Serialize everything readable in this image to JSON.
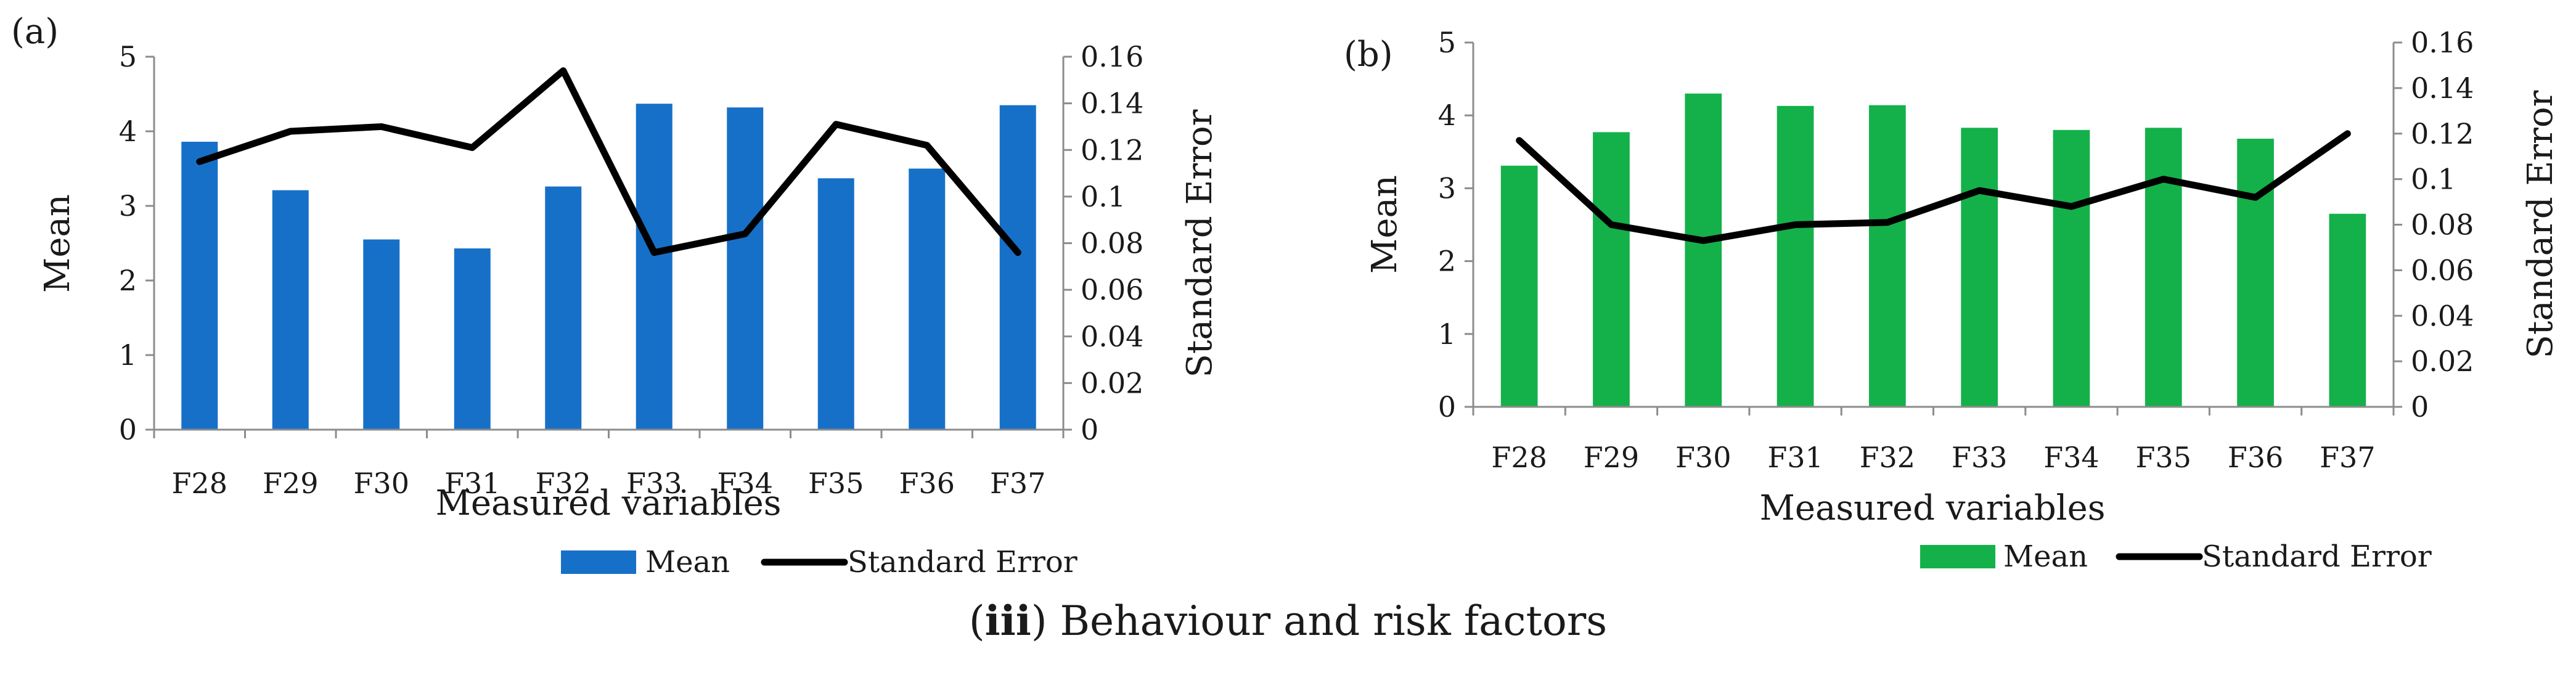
{
  "caption": {
    "open": "(",
    "bold": "iii",
    "rest": ") Behaviour and risk factors"
  },
  "chart_data": [
    {
      "panel_label": "(a)",
      "type": "bar",
      "categories": [
        "F28",
        "F29",
        "F30",
        "F31",
        "F32",
        "F33",
        "F34",
        "F35",
        "F36",
        "F37"
      ],
      "series": [
        {
          "name": "Mean",
          "kind": "bar",
          "axis": "left",
          "color": "#1770C8",
          "values": [
            3.86,
            3.21,
            2.55,
            2.43,
            3.26,
            4.37,
            4.32,
            3.37,
            3.5,
            4.35
          ]
        },
        {
          "name": "Standard Error",
          "kind": "line",
          "axis": "right",
          "color": "#000000",
          "values": [
            0.115,
            0.128,
            0.13,
            0.121,
            0.154,
            0.076,
            0.084,
            0.131,
            0.122,
            0.076
          ]
        }
      ],
      "xlabel": "Measured variables",
      "ylabel": "Mean",
      "y2label": "Standard Error",
      "ylim": [
        0,
        5
      ],
      "y2lim": [
        0,
        0.16
      ],
      "yticks": [
        "0",
        "1",
        "2",
        "3",
        "4",
        "5"
      ],
      "y2ticks": [
        "0",
        "0.02",
        "0.04",
        "0.06",
        "0.08",
        "0.1",
        "0.12",
        "0.14",
        "0.16"
      ],
      "legend": [
        "Mean",
        "Standard Error"
      ]
    },
    {
      "panel_label": "(b)",
      "type": "bar",
      "categories": [
        "F28",
        "F29",
        "F30",
        "F31",
        "F32",
        "F33",
        "F34",
        "F35",
        "F36",
        "F37"
      ],
      "series": [
        {
          "name": "Mean",
          "kind": "bar",
          "axis": "left",
          "color": "#14B14A",
          "values": [
            3.31,
            3.77,
            4.3,
            4.13,
            4.14,
            3.83,
            3.8,
            3.83,
            3.68,
            2.65
          ]
        },
        {
          "name": "Standard Error",
          "kind": "line",
          "axis": "right",
          "color": "#000000",
          "values": [
            0.117,
            0.08,
            0.073,
            0.08,
            0.081,
            0.095,
            0.088,
            0.1,
            0.092,
            0.12
          ]
        }
      ],
      "xlabel": "Measured variables",
      "ylabel": "Mean",
      "y2label": "Standard Error",
      "ylim": [
        0,
        5
      ],
      "y2lim": [
        0,
        0.16
      ],
      "yticks": [
        "0",
        "1",
        "2",
        "3",
        "4",
        "5"
      ],
      "y2ticks": [
        "0",
        "0.02",
        "0.04",
        "0.06",
        "0.08",
        "0.1",
        "0.12",
        "0.14",
        "0.16"
      ],
      "legend": [
        "Mean",
        "Standard Error"
      ]
    }
  ]
}
